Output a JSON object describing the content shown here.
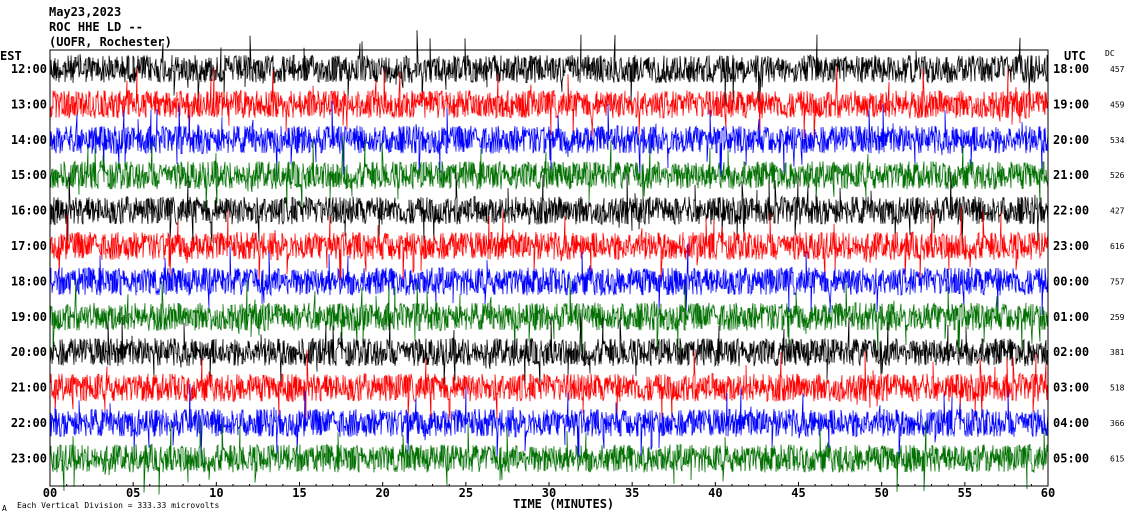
{
  "header": {
    "date": "May23,2023",
    "station": "ROC HHE LD --",
    "location": "(UOFR, Rochester)"
  },
  "left_axis_title": "EST",
  "right_axis_title": "UTC",
  "dc_title": "DC",
  "footer": {
    "scale_note": "Each Vertical Division =  333.33 microvolts",
    "corner_mark": "A"
  },
  "chart_data": {
    "type": "line",
    "xlabel": "TIME (MINUTES)",
    "xlim": [
      0,
      60
    ],
    "x_ticks": [
      "00",
      "05",
      "10",
      "15",
      "20",
      "25",
      "30",
      "35",
      "40",
      "45",
      "50",
      "55",
      "60"
    ],
    "trace_colors": [
      "#000000",
      "#ff0000",
      "#0000ff",
      "#007000"
    ],
    "rows": [
      {
        "est": "12:00",
        "utc": "18:00",
        "dc": "457"
      },
      {
        "est": "13:00",
        "utc": "19:00",
        "dc": "459"
      },
      {
        "est": "14:00",
        "utc": "20:00",
        "dc": "534"
      },
      {
        "est": "15:00",
        "utc": "21:00",
        "dc": "526"
      },
      {
        "est": "16:00",
        "utc": "22:00",
        "dc": "427"
      },
      {
        "est": "17:00",
        "utc": "23:00",
        "dc": "616"
      },
      {
        "est": "18:00",
        "utc": "00:00",
        "dc": "757"
      },
      {
        "est": "19:00",
        "utc": "01:00",
        "dc": "259"
      },
      {
        "est": "20:00",
        "utc": "02:00",
        "dc": "381"
      },
      {
        "est": "21:00",
        "utc": "03:00",
        "dc": "518"
      },
      {
        "est": "22:00",
        "utc": "04:00",
        "dc": "366"
      },
      {
        "est": "23:00",
        "utc": "05:00",
        "dc": "615"
      }
    ]
  }
}
